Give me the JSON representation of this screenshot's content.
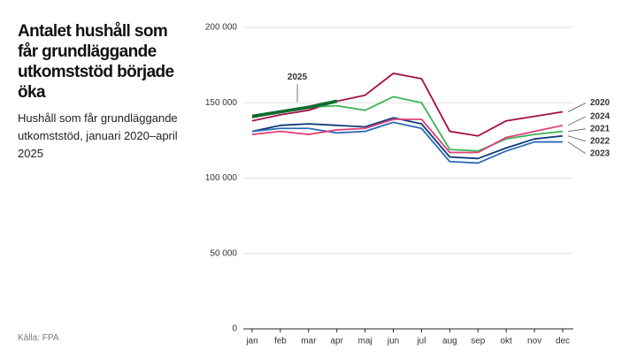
{
  "chart_data": {
    "type": "line",
    "title": "Antalet hushåll som får grundläggande utkomststöd började öka",
    "subtitle": "Hushåll som får grundläggande utkomststöd, januari 2020–april 2025",
    "source": "Källa: FPA",
    "categories": [
      "jan",
      "feb",
      "mar",
      "apr",
      "maj",
      "jun",
      "jul",
      "aug",
      "sep",
      "okt",
      "nov",
      "dec"
    ],
    "series": [
      {
        "name": "2020",
        "color": "#a50d48",
        "width": 1.8,
        "values": [
          138000,
          142000,
          145000,
          151000,
          155000,
          169500,
          166000,
          131000,
          128000,
          138000,
          141000,
          144000
        ]
      },
      {
        "name": "2021",
        "color": "#3cb55a",
        "width": 1.8,
        "values": [
          140000,
          144000,
          147000,
          148000,
          145000,
          154000,
          150000,
          119000,
          118000,
          126000,
          129000,
          131000
        ]
      },
      {
        "name": "2022",
        "color": "#0d3a7a",
        "width": 1.8,
        "values": [
          131000,
          135000,
          136000,
          135000,
          134000,
          140000,
          136000,
          114000,
          113000,
          120000,
          126000,
          128000
        ]
      },
      {
        "name": "2023",
        "color": "#2b6cb8",
        "width": 1.8,
        "values": [
          131000,
          133000,
          133000,
          130000,
          131000,
          137000,
          133000,
          111000,
          110000,
          118000,
          124000,
          124000
        ]
      },
      {
        "name": "2024",
        "color": "#e0407a",
        "width": 1.8,
        "values": [
          129000,
          131000,
          129000,
          132000,
          133000,
          139000,
          139000,
          117000,
          117000,
          127000,
          131000,
          135000
        ]
      },
      {
        "name": "2025",
        "color": "#0e6b30",
        "width": 3.8,
        "values": [
          141000,
          144000,
          147000,
          151000,
          null,
          null,
          null,
          null,
          null,
          null,
          null,
          null
        ]
      }
    ],
    "ylim": [
      0,
      200000
    ],
    "yticks": [
      0,
      {
        "value": 50000,
        "label": "50 000"
      },
      {
        "value": 100000,
        "label": "100 000"
      },
      {
        "value": 150000,
        "label": "150 000"
      },
      {
        "value": 200000,
        "label": "200 000"
      }
    ],
    "grid": true
  }
}
